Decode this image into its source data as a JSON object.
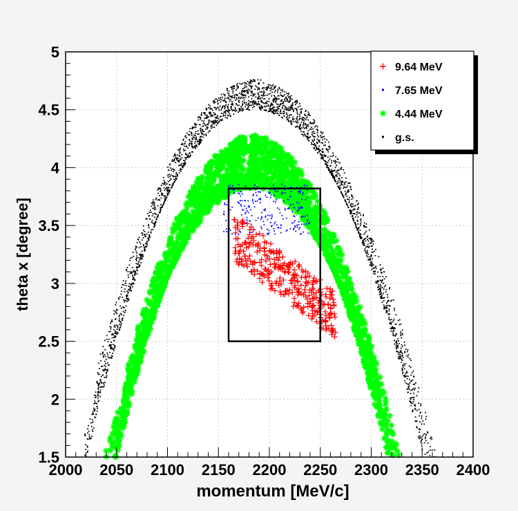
{
  "chart_data": {
    "type": "scatter",
    "title": "",
    "xlabel": "momentum [MeV/c]",
    "ylabel": "theta x [degree]",
    "xlim": [
      2000,
      2400
    ],
    "ylim": [
      1.5,
      5
    ],
    "x_ticks": [
      2000,
      2050,
      2100,
      2150,
      2200,
      2250,
      2300,
      2350,
      2400
    ],
    "x_tick_labels": [
      "2000",
      "2050",
      "2100",
      "2150",
      "2200",
      "2250",
      "2300",
      "2350",
      "2400"
    ],
    "y_ticks": [
      1.5,
      2,
      2.5,
      3,
      3.5,
      4,
      4.5,
      5
    ],
    "y_tick_labels": [
      "1.5",
      "2",
      "2.5",
      "3",
      "3.5",
      "4",
      "4.5",
      "5"
    ],
    "grid": true,
    "legend_position": "top-right",
    "selection_box": {
      "x": [
        2160,
        2250
      ],
      "y": [
        2.5,
        3.82
      ]
    },
    "series": [
      {
        "name": "g.s.",
        "marker": "dot",
        "color": "#000000",
        "shape": "band",
        "apex_x": 2186,
        "apex_y_range": [
          4.5,
          4.76
        ],
        "base_y": 1.5,
        "base_x_range_left": [
          2013,
          2033
        ],
        "base_x_range_right": [
          2343,
          2364
        ]
      },
      {
        "name": "4.44 MeV",
        "marker": "star",
        "color": "#00ff00",
        "shape": "band",
        "apex_x": 2183,
        "apex_y_range": [
          3.82,
          4.28
        ],
        "base_y": 1.5,
        "base_x_range_left": [
          2038,
          2062
        ],
        "base_x_range_right": [
          2303,
          2328
        ]
      },
      {
        "name": "7.65 MeV",
        "marker": "dot",
        "color": "#0000ff",
        "shape": "cluster",
        "x_range": [
          2155,
          2240
        ],
        "y_range": [
          3.42,
          3.86
        ]
      },
      {
        "name": "9.64 MeV",
        "marker": "plus",
        "color": "#ff0000",
        "shape": "cluster",
        "x_range": [
          2165,
          2265
        ],
        "y_range": [
          2.52,
          3.55
        ],
        "trend": "decreasing"
      }
    ]
  },
  "legend": {
    "items": [
      {
        "label": "9.64 MeV",
        "marker": "plus",
        "color": "#ff0000"
      },
      {
        "label": "7.65 MeV",
        "marker": "dot",
        "color": "#0000ff"
      },
      {
        "label": "4.44 MeV",
        "marker": "star",
        "color": "#00ff00"
      },
      {
        "label": "g.s.",
        "marker": "dot",
        "color": "#000000"
      }
    ]
  }
}
